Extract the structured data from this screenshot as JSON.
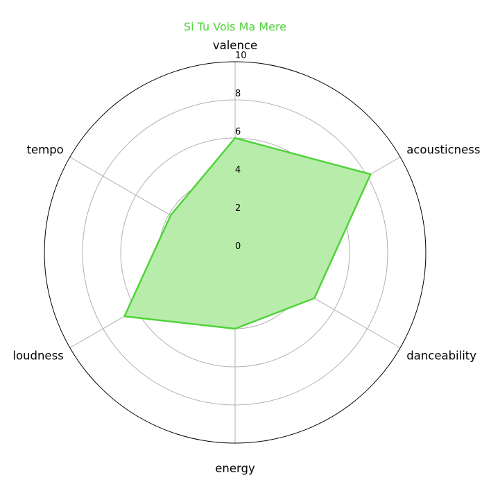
{
  "chart_data": {
    "type": "radar",
    "title": "Si Tu Vois Ma Mere",
    "axes": [
      "valence",
      "acousticness",
      "danceability",
      "energy",
      "loudness",
      "tempo"
    ],
    "values": [
      6,
      8.2,
      4.8,
      4,
      6.7,
      3.9
    ],
    "rlim": [
      0,
      10
    ],
    "rticks": [
      0,
      2,
      4,
      6,
      8,
      10
    ],
    "grid": true
  },
  "colors": {
    "series_line": "#4fd339",
    "series_fill": "#b8ecab",
    "title": "#4fd339",
    "grid": "#b0b0b0",
    "outer": "#000000"
  }
}
